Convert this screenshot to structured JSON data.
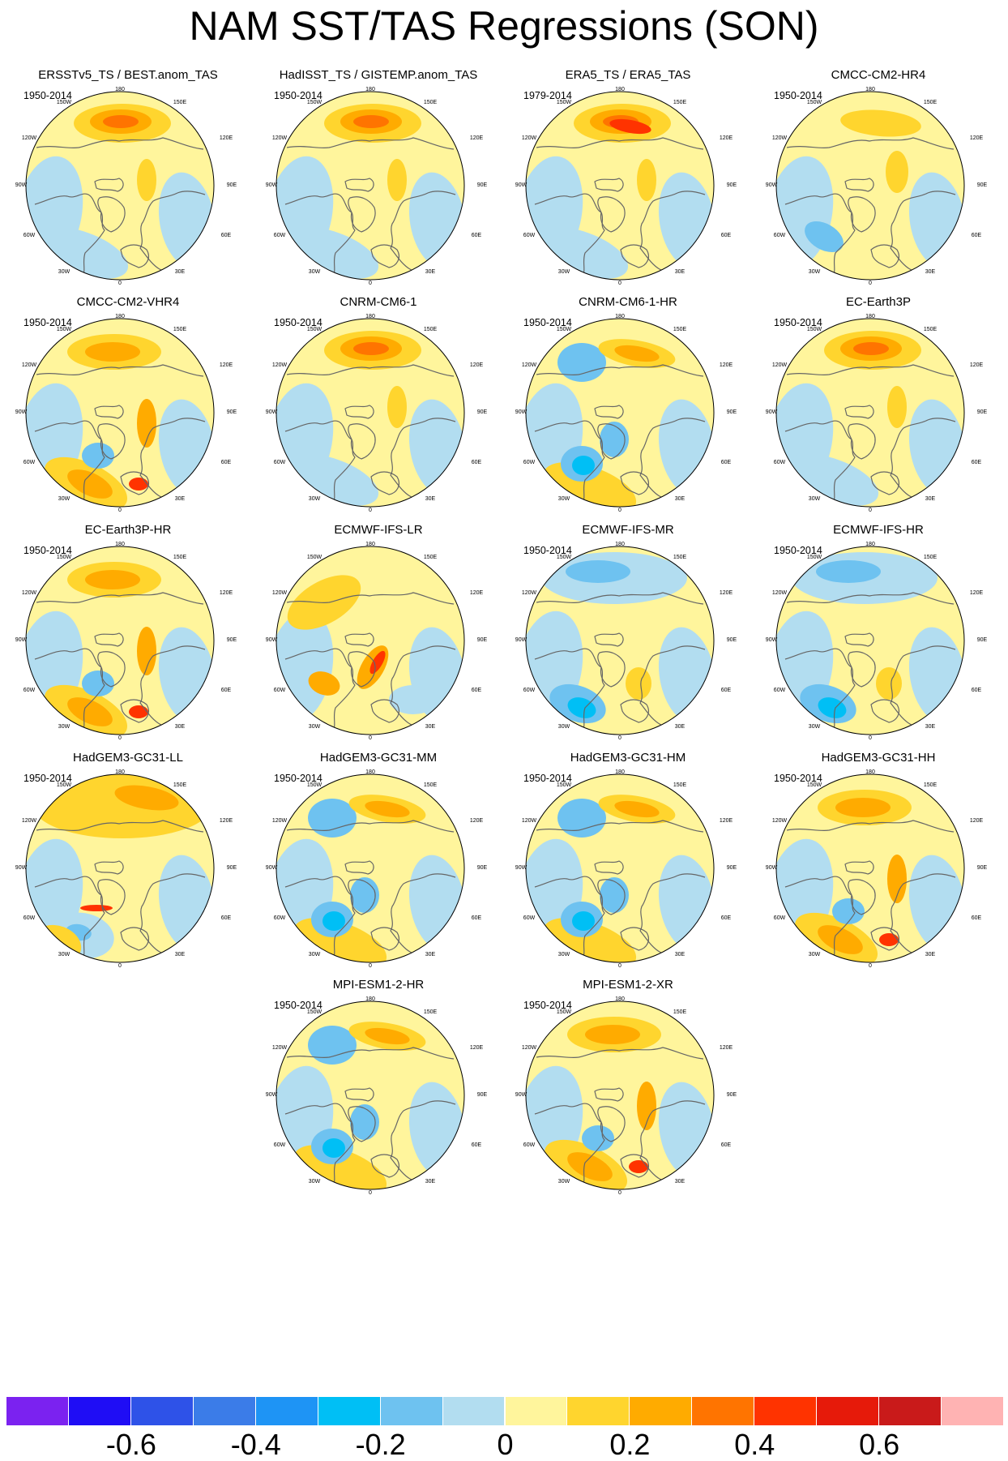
{
  "title": "NAM SST/TAS Regressions (SON)",
  "lon_labels": {
    "top": "180",
    "l150": "150W",
    "r150": "150E",
    "l120": "120W",
    "r120": "120E",
    "l90": "90W",
    "r90": "90E",
    "l60": "60W",
    "r60": "60E",
    "l30": "30W",
    "r30": "30E",
    "bottom": "0"
  },
  "panels": [
    {
      "title": "ERSSTv5_TS / BEST.anom_TAS",
      "years": "1950-2014",
      "pattern": "obs"
    },
    {
      "title": "HadISST_TS / GISTEMP.anom_TAS",
      "years": "1950-2014",
      "pattern": "obs"
    },
    {
      "title": "ERA5_TS / ERA5_TAS",
      "years": "1979-2014",
      "pattern": "era"
    },
    {
      "title": "CMCC-CM2-HR4",
      "years": "1950-2014",
      "pattern": "weak"
    },
    {
      "title": "CMCC-CM2-VHR4",
      "years": "1950-2014",
      "pattern": "warm"
    },
    {
      "title": "CNRM-CM6-1",
      "years": "1950-2014",
      "pattern": "obs"
    },
    {
      "title": "CNRM-CM6-1-HR",
      "years": "1950-2014",
      "pattern": "dipole"
    },
    {
      "title": "EC-Earth3P",
      "years": "1950-2014",
      "pattern": "obs"
    },
    {
      "title": "EC-Earth3P-HR",
      "years": "1950-2014",
      "pattern": "warm"
    },
    {
      "title": "ECMWF-IFS-LR",
      "years": "",
      "pattern": "lr"
    },
    {
      "title": "ECMWF-IFS-MR",
      "years": "1950-2014",
      "pattern": "cool"
    },
    {
      "title": "ECMWF-IFS-HR",
      "years": "1950-2014",
      "pattern": "cool"
    },
    {
      "title": "HadGEM3-GC31-LL",
      "years": "1950-2014",
      "pattern": "ll"
    },
    {
      "title": "HadGEM3-GC31-MM",
      "years": "1950-2014",
      "pattern": "dipole"
    },
    {
      "title": "HadGEM3-GC31-HM",
      "years": "1950-2014",
      "pattern": "dipole"
    },
    {
      "title": "HadGEM3-GC31-HH",
      "years": "1950-2014",
      "pattern": "warm"
    },
    {
      "title": "MPI-ESM1-2-HR",
      "years": "1950-2014",
      "pattern": "dipole"
    },
    {
      "title": "MPI-ESM1-2-XR",
      "years": "1950-2014",
      "pattern": "warm"
    }
  ],
  "colorbar": {
    "colors": [
      "#7b22f0",
      "#1f0df5",
      "#2e52e8",
      "#3b7ce8",
      "#1e94f5",
      "#00bff5",
      "#6ec2f0",
      "#b2ddf0",
      "#fff59c",
      "#ffd52e",
      "#ffab00",
      "#ff7400",
      "#ff3300",
      "#e61a0a",
      "#c91a1a",
      "#ffb3b3"
    ],
    "labels": [
      "-0.6",
      "-0.4",
      "-0.2",
      "0",
      "0.2",
      "0.4",
      "0.6"
    ]
  }
}
